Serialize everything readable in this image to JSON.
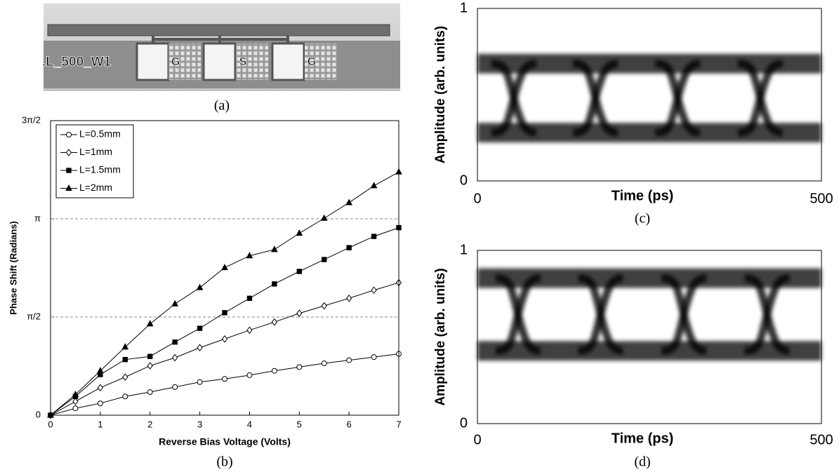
{
  "photo": {
    "chip_label": ".L_500_W1",
    "pads": [
      "G",
      "S",
      "G"
    ],
    "caption": "(a)"
  },
  "chart_data": [
    {
      "type": "line",
      "caption": "(b)",
      "xlabel": "Reverse Bias Voltage (Volts)",
      "ylabel": "Phase Shift (Radians)",
      "x": [
        0,
        0.5,
        1,
        1.5,
        2,
        2.5,
        3,
        3.5,
        4,
        4.5,
        5,
        5.5,
        6,
        6.5,
        7
      ],
      "xlim": [
        0,
        7
      ],
      "xticks": [
        0,
        1,
        2,
        3,
        4,
        5,
        6,
        7
      ],
      "ylim": [
        0,
        4.712389
      ],
      "yticks": [
        0,
        {
          "value": 1.5707963,
          "label": "π/2"
        },
        {
          "value": 3.1415927,
          "label": "π"
        },
        {
          "value": 4.712389,
          "label": "3π/2"
        }
      ],
      "grid": "dashed",
      "legend": "upper-left",
      "series": [
        {
          "name": "L=0.5mm",
          "color": "#000000",
          "marker": "circle",
          "values": [
            0,
            0.11,
            0.19,
            0.3,
            0.37,
            0.45,
            0.53,
            0.58,
            0.64,
            0.71,
            0.77,
            0.83,
            0.88,
            0.93,
            0.98
          ]
        },
        {
          "name": "L=1mm",
          "color": "#000000",
          "marker": "diamond",
          "values": [
            0,
            0.22,
            0.44,
            0.61,
            0.79,
            0.92,
            1.08,
            1.22,
            1.36,
            1.49,
            1.63,
            1.75,
            1.87,
            2.0,
            2.12
          ]
        },
        {
          "name": "L=1.5mm",
          "color": "#000000",
          "marker": "square",
          "values": [
            0,
            0.3,
            0.65,
            0.89,
            0.94,
            1.17,
            1.39,
            1.64,
            1.87,
            2.1,
            2.3,
            2.49,
            2.68,
            2.86,
            3.0
          ]
        },
        {
          "name": "L=2mm",
          "color": "#000000",
          "marker": "triangle",
          "values": [
            0,
            0.33,
            0.71,
            1.09,
            1.46,
            1.78,
            2.04,
            2.36,
            2.55,
            2.65,
            2.91,
            3.15,
            3.4,
            3.67,
            3.89
          ]
        }
      ]
    },
    {
      "type": "eye",
      "caption": "(c)",
      "xlabel": "Time (ps)",
      "ylabel": "Amplitude (arb. units)",
      "xlim": [
        0,
        500
      ],
      "xticks": [
        0,
        500
      ],
      "ylim": [
        0,
        1
      ],
      "yticks": [
        0,
        1
      ]
    },
    {
      "type": "eye",
      "caption": "(d)",
      "xlabel": "Time (ps)",
      "ylabel": "Amplitude (arb. units)",
      "xlim": [
        0,
        500
      ],
      "xticks": [
        0,
        500
      ],
      "ylim": [
        0,
        1
      ],
      "yticks": [
        0,
        1
      ]
    }
  ]
}
